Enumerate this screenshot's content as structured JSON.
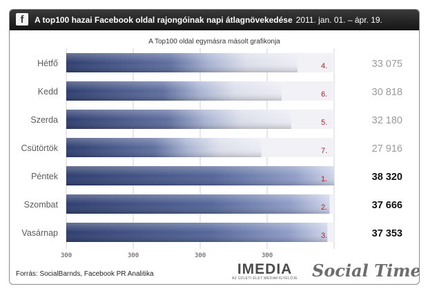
{
  "header": {
    "icon_letter": "f",
    "title": "A top100 hazai Facebook oldal rajongóinak napi átlagnövekedése",
    "date_range": "2011. jan. 01. – ápr. 19."
  },
  "chart_data": {
    "type": "bar",
    "title": "A top100 hazai Facebook oldal rajongóinak napi átlagnövekedése",
    "subtitle": "A Top100 oldal egymásra másolt grafikonja",
    "categories": [
      "Hétfő",
      "Kedd",
      "Szerda",
      "Csütörtök",
      "Péntek",
      "Szombat",
      "Vasárnap"
    ],
    "values": [
      33075,
      30818,
      32180,
      27916,
      38320,
      37666,
      37353
    ],
    "value_labels": [
      "33 075",
      "30 818",
      "32 180",
      "27 916",
      "38 320",
      "37 666",
      "37 353"
    ],
    "ranks": [
      "4.",
      "6.",
      "5.",
      "7.",
      "1.",
      "2.",
      "3."
    ],
    "highlighted": [
      false,
      false,
      false,
      false,
      true,
      true,
      true
    ],
    "x_ticks": [
      "300",
      "300",
      "300",
      "300"
    ],
    "xlim": [
      0,
      38320
    ],
    "legend": "none",
    "colors": {
      "bar_dark": "#2f3e6f",
      "bar_mid": "#6e7fb3",
      "bar_light": "#ececf5",
      "rank": "#b0202a",
      "value_normal": "#9a9a9a",
      "value_highlight": "#111111",
      "label": "#5a5a5a"
    }
  },
  "footer": {
    "source": "Forrás: SocialBarnds, Facebook PR Analitika",
    "imedia": "IMEDIA",
    "imedia_tagline": "AZ ÜZLETI ÉLET MÉDIAFIGYELŐJE",
    "socialtimes": "Social Times"
  }
}
